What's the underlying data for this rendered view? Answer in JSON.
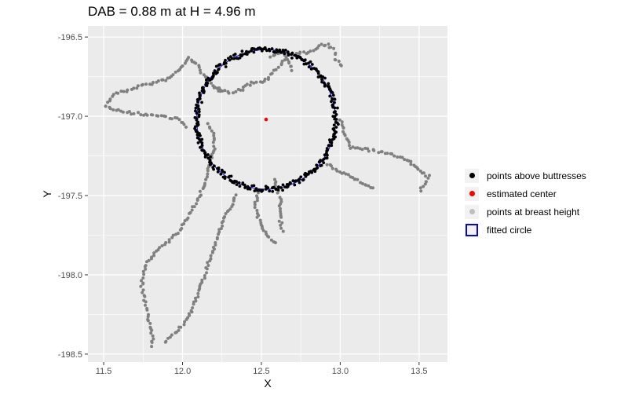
{
  "chart_data": {
    "type": "scatter",
    "title": "DAB = 0.88 m at H = 4.96 m",
    "xlabel": "X",
    "ylabel": "Y",
    "xlim": [
      11.4,
      13.68
    ],
    "ylim": [
      -198.55,
      -196.43
    ],
    "xticks": [
      "11.5",
      "12.0",
      "12.5",
      "13.0",
      "13.5"
    ],
    "xtick_values": [
      11.5,
      12.0,
      12.5,
      13.0,
      13.5
    ],
    "yticks": [
      "-196.5",
      "-197.0",
      "-197.5",
      "-198.0",
      "-198.5"
    ],
    "ytick_values": [
      -196.5,
      -197.0,
      -197.5,
      -198.0,
      -198.5
    ],
    "grid": true,
    "colors": {
      "panel": "#ebebeb",
      "grid": "#ffffff",
      "above": "#000000",
      "center": "#ff0000",
      "breast": "#808080",
      "circle": "#0000ff"
    },
    "center": {
      "x": 12.53,
      "y": -197.02
    },
    "circle_diameter": 0.88,
    "circle_radius": 0.44,
    "breast_height_paths": [
      [
        [
          11.52,
          -196.93
        ],
        [
          11.56,
          -196.86
        ],
        [
          11.64,
          -196.84
        ],
        [
          11.72,
          -196.81
        ],
        [
          11.82,
          -196.79
        ],
        [
          11.92,
          -196.76
        ],
        [
          12.0,
          -196.68
        ],
        [
          12.04,
          -196.63
        ],
        [
          12.08,
          -196.66
        ],
        [
          12.12,
          -196.72
        ],
        [
          12.2,
          -196.82
        ],
        [
          12.26,
          -196.85
        ]
      ],
      [
        [
          11.52,
          -196.93
        ],
        [
          11.58,
          -196.96
        ],
        [
          11.68,
          -196.98
        ],
        [
          11.78,
          -196.99
        ],
        [
          11.88,
          -197.0
        ],
        [
          11.98,
          -197.02
        ],
        [
          12.03,
          -197.08
        ]
      ],
      [
        [
          12.2,
          -196.82
        ],
        [
          12.3,
          -196.85
        ],
        [
          12.38,
          -196.83
        ],
        [
          12.44,
          -196.79
        ],
        [
          12.52,
          -196.78
        ],
        [
          12.56,
          -196.74
        ],
        [
          12.62,
          -196.68
        ],
        [
          12.66,
          -196.64
        ]
      ],
      [
        [
          12.56,
          -196.62
        ],
        [
          12.6,
          -196.6
        ],
        [
          12.64,
          -196.6
        ],
        [
          12.67,
          -196.65
        ],
        [
          12.7,
          -196.72
        ]
      ],
      [
        [
          12.72,
          -196.6
        ],
        [
          12.78,
          -196.6
        ],
        [
          12.84,
          -196.58
        ],
        [
          12.88,
          -196.55
        ],
        [
          12.92,
          -196.55
        ],
        [
          12.96,
          -196.58
        ],
        [
          12.98,
          -196.63
        ]
      ],
      [
        [
          12.96,
          -196.64
        ],
        [
          12.99,
          -196.66
        ],
        [
          13.01,
          -196.7
        ]
      ],
      [
        [
          13.0,
          -197.02
        ],
        [
          13.06,
          -197.2
        ],
        [
          13.12,
          -197.2
        ],
        [
          13.22,
          -197.22
        ],
        [
          13.32,
          -197.24
        ],
        [
          13.42,
          -197.27
        ],
        [
          13.5,
          -197.34
        ],
        [
          13.56,
          -197.38
        ],
        [
          13.54,
          -197.42
        ],
        [
          13.5,
          -197.48
        ]
      ],
      [
        [
          12.92,
          -197.3
        ],
        [
          12.98,
          -197.34
        ],
        [
          13.06,
          -197.38
        ],
        [
          13.14,
          -197.42
        ],
        [
          13.22,
          -197.46
        ]
      ],
      [
        [
          12.16,
          -197.05
        ],
        [
          12.2,
          -197.12
        ],
        [
          12.2,
          -197.22
        ],
        [
          12.17,
          -197.32
        ],
        [
          12.14,
          -197.42
        ],
        [
          12.1,
          -197.52
        ],
        [
          12.04,
          -197.62
        ],
        [
          11.98,
          -197.72
        ],
        [
          11.9,
          -197.8
        ],
        [
          11.82,
          -197.86
        ],
        [
          11.78,
          -197.92
        ],
        [
          11.75,
          -198.0
        ],
        [
          11.74,
          -198.08
        ],
        [
          11.76,
          -198.16
        ],
        [
          11.78,
          -198.26
        ],
        [
          11.8,
          -198.34
        ],
        [
          11.81,
          -198.42
        ],
        [
          11.8,
          -198.46
        ]
      ],
      [
        [
          12.34,
          -197.5
        ],
        [
          12.3,
          -197.58
        ],
        [
          12.26,
          -197.66
        ],
        [
          12.22,
          -197.76
        ],
        [
          12.18,
          -197.88
        ],
        [
          12.14,
          -198.0
        ],
        [
          12.1,
          -198.12
        ],
        [
          12.06,
          -198.22
        ],
        [
          12.02,
          -198.3
        ],
        [
          11.96,
          -198.36
        ],
        [
          11.9,
          -198.42
        ],
        [
          11.87,
          -198.44
        ]
      ],
      [
        [
          12.48,
          -197.48
        ],
        [
          12.46,
          -197.56
        ],
        [
          12.48,
          -197.64
        ],
        [
          12.52,
          -197.72
        ],
        [
          12.56,
          -197.78
        ],
        [
          12.6,
          -197.8
        ]
      ],
      [
        [
          12.58,
          -197.4
        ],
        [
          12.62,
          -197.52
        ],
        [
          12.62,
          -197.66
        ],
        [
          12.64,
          -197.74
        ]
      ]
    ],
    "legend": {
      "position": "right",
      "entries": [
        {
          "label": "points above buttresses",
          "kind": "dot",
          "color": "#000000"
        },
        {
          "label": "estimated center",
          "kind": "dot",
          "color": "#ff0000"
        },
        {
          "label": "points at breast height",
          "kind": "dot",
          "color": "#bebebe"
        },
        {
          "label": "fitted circle",
          "kind": "box",
          "color": "#0000ff"
        }
      ]
    }
  }
}
